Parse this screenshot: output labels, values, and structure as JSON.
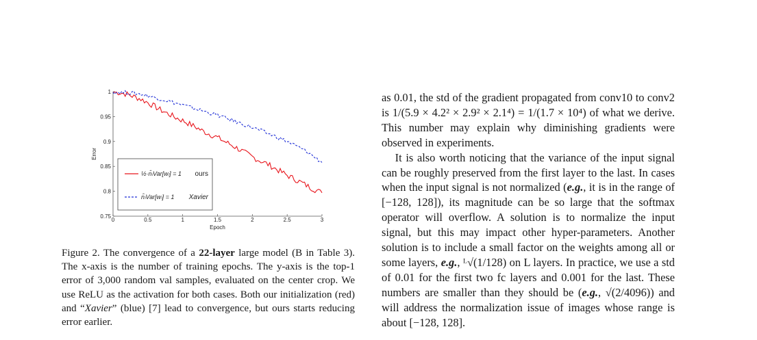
{
  "chart_data": {
    "type": "line",
    "xlabel": "Epoch",
    "ylabel": "Error",
    "xlim": [
      0,
      3
    ],
    "ylim": [
      0.75,
      1
    ],
    "xticks": [
      0,
      0.5,
      1,
      1.5,
      2,
      2.5,
      3
    ],
    "xtick_labels": [
      "0",
      "0.5",
      "1",
      "1.5",
      "2",
      "2.5",
      "3"
    ],
    "yticks": [
      0.75,
      0.8,
      0.85,
      0.9,
      0.95,
      1
    ],
    "ytick_labels": [
      "0.75",
      "0.8",
      "0.85",
      "0.9",
      "0.95",
      "1"
    ],
    "grid": false,
    "legend_position": "bottom-left",
    "series": [
      {
        "name": "ours",
        "formula": "½·n̂ₗVar[wₗ] = 1",
        "color": "#e8141b",
        "style": "solid",
        "x": [
          0,
          0.1,
          0.2,
          0.3,
          0.4,
          0.5,
          0.6,
          0.7,
          0.8,
          0.9,
          1.0,
          1.1,
          1.2,
          1.3,
          1.4,
          1.5,
          1.6,
          1.7,
          1.8,
          1.9,
          2.0,
          2.1,
          2.2,
          2.3,
          2.4,
          2.5,
          2.6,
          2.7,
          2.8,
          2.9,
          3.0
        ],
        "y": [
          0.999,
          0.998,
          0.995,
          0.99,
          0.985,
          0.978,
          0.97,
          0.962,
          0.955,
          0.948,
          0.942,
          0.935,
          0.928,
          0.92,
          0.914,
          0.908,
          0.9,
          0.893,
          0.885,
          0.877,
          0.869,
          0.862,
          0.856,
          0.848,
          0.84,
          0.832,
          0.825,
          0.818,
          0.81,
          0.803,
          0.797
        ]
      },
      {
        "name": "Xavier",
        "formula": "n̂ₗVar[wₗ] = 1",
        "color": "#1f2fd6",
        "style": "dashed",
        "x": [
          0,
          0.1,
          0.2,
          0.3,
          0.4,
          0.5,
          0.6,
          0.7,
          0.8,
          0.9,
          1.0,
          1.1,
          1.2,
          1.3,
          1.4,
          1.5,
          1.6,
          1.7,
          1.8,
          1.9,
          2.0,
          2.1,
          2.2,
          2.3,
          2.4,
          2.5,
          2.6,
          2.7,
          2.8,
          2.9,
          3.0
        ],
        "y": [
          0.999,
          0.999,
          0.998,
          0.997,
          0.995,
          0.992,
          0.988,
          0.985,
          0.981,
          0.977,
          0.973,
          0.969,
          0.965,
          0.961,
          0.957,
          0.953,
          0.948,
          0.943,
          0.938,
          0.933,
          0.928,
          0.923,
          0.917,
          0.912,
          0.906,
          0.9,
          0.893,
          0.886,
          0.878,
          0.868,
          0.858
        ]
      }
    ]
  },
  "caption": {
    "prefix": "Figure 2. The convergence of a ",
    "bold": "22-layer",
    "mid1": " large model (B in Table 3). The x-axis is the number of training epochs. The y-axis is the top-1 error of 3,000 random val samples, evaluated on the center crop. We use ReLU as the activation for both cases. Both our initialization (red) and “",
    "xavier": "Xavier",
    "mid2": "” (blue) [7] lead to convergence, but ours starts reducing error earlier."
  },
  "body_text": {
    "p1": "as 0.01, the std of the gradient propagated from conv10 to conv2 is 1/(5.9 × 4.2² × 2.9² × 2.1⁴) = 1/(1.7 × 10⁴) of what we derive. This number may explain why diminishing gradients were observed in experiments.",
    "p2a": "It is also worth noticing that the variance of the input signal can be roughly preserved from the first layer to the last. In cases when the input signal is not normalized (",
    "eg1": "e.g.",
    "p2b": ", it is in the range of [−128, 128]), its magnitude can be so large that the softmax operator will overflow. A solution is to normalize the input signal, but this may impact other hyper-parameters. Another solution is to include a small factor on the weights among all or some layers, ",
    "eg2": "e.g.",
    "p2c": ", ᴸ√(1/128) on L layers. In practice, we use a std of 0.01 for the first two fc layers and 0.001 for the last. These numbers are smaller than they should be (",
    "eg3": "e.g.",
    "p2d": ", √(2/4096)) and will address the normalization issue of images whose range is about [−128, 128]."
  }
}
